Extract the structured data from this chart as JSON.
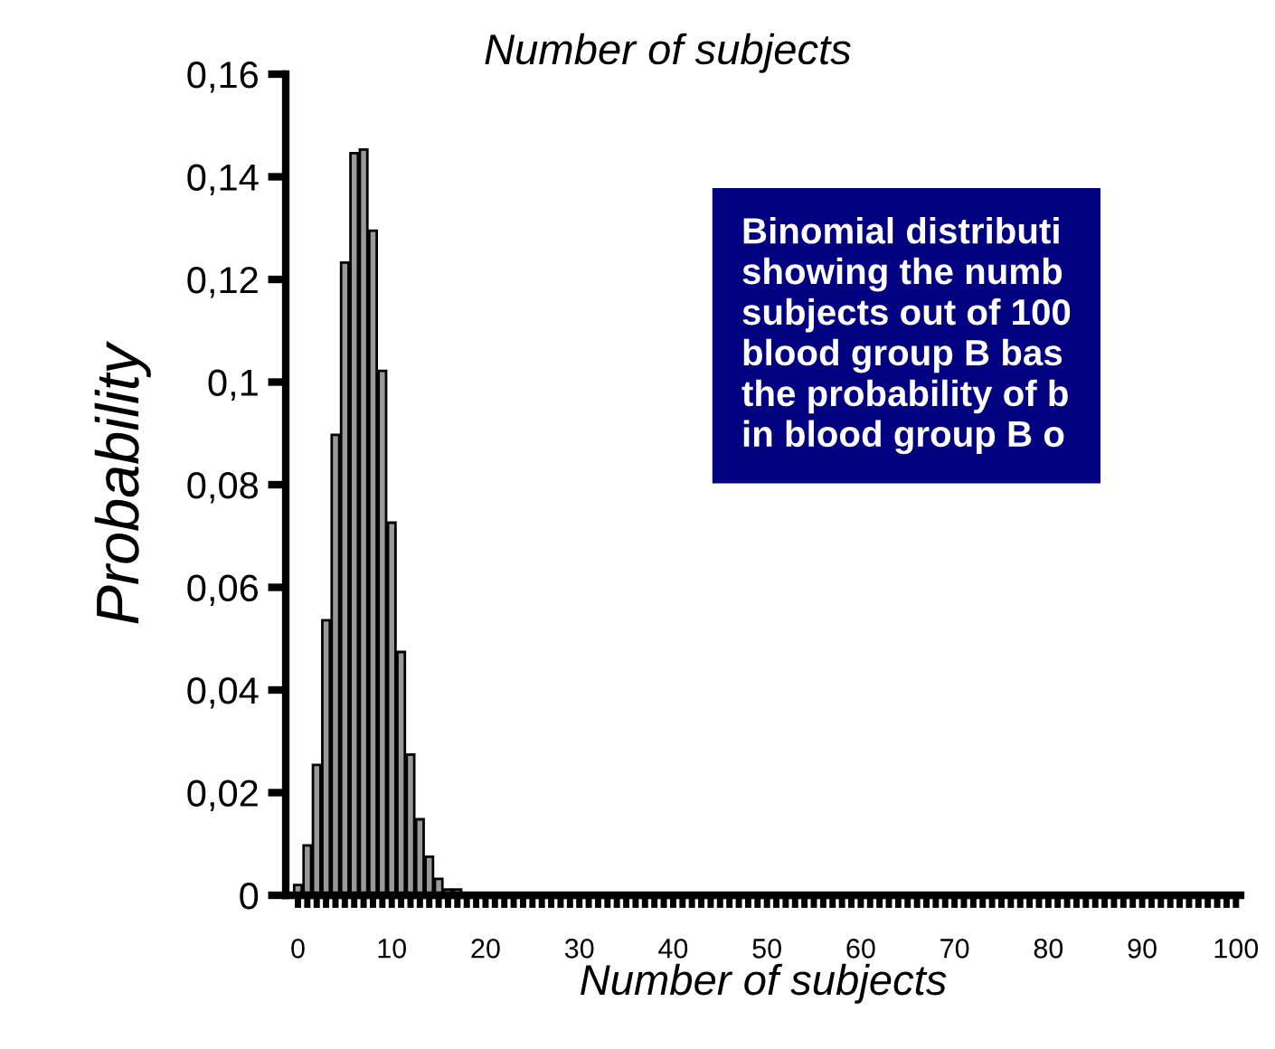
{
  "chart_data": {
    "type": "bar",
    "title": "Number of subjects",
    "xlabel": "Number of subjects",
    "ylabel": "Probability",
    "categories": [
      "0",
      null,
      null,
      null,
      null,
      null,
      null,
      null,
      null,
      null,
      "10",
      null,
      null,
      null,
      null,
      null,
      null,
      null,
      null,
      null,
      "20",
      null,
      null,
      null,
      null,
      null,
      null,
      null,
      null,
      null,
      "30",
      null,
      null,
      null,
      null,
      null,
      null,
      null,
      null,
      null,
      "40",
      null,
      null,
      null,
      null,
      null,
      null,
      null,
      null,
      null,
      "50",
      null,
      null,
      null,
      null,
      null,
      null,
      null,
      null,
      null,
      "60",
      null,
      null,
      null,
      null,
      null,
      null,
      null,
      null,
      null,
      "70",
      null,
      null,
      null,
      null,
      null,
      null,
      null,
      null,
      null,
      "80",
      null,
      null,
      null,
      null,
      null,
      null,
      null,
      null,
      null,
      "90",
      null,
      null,
      null,
      null,
      null,
      null,
      null,
      null,
      null,
      "100"
    ],
    "values": [
      0.002,
      0.0097,
      0.0254,
      0.0536,
      0.0897,
      0.1233,
      0.1446,
      0.1453,
      0.1295,
      0.1022,
      0.0726,
      0.0474,
      0.0274,
      0.0148,
      0.0075,
      0.0032,
      0.0011,
      0.0011,
      null,
      null,
      null,
      null,
      null,
      null,
      null,
      null,
      null,
      null,
      null,
      null,
      null,
      null,
      null,
      null,
      null,
      null,
      null,
      null,
      null,
      null,
      null,
      null,
      null,
      null,
      null,
      null,
      null,
      null,
      null,
      null,
      null,
      null,
      null,
      null,
      null,
      null,
      null,
      null,
      null,
      null,
      null,
      null,
      null,
      null,
      null,
      null,
      null,
      null,
      null,
      null,
      null,
      null,
      null,
      null,
      null,
      null,
      null,
      null,
      null,
      null,
      null,
      null,
      null,
      null,
      null,
      null,
      null,
      null,
      null,
      null,
      null,
      null,
      null,
      null,
      null,
      null,
      null,
      null,
      null,
      null,
      null
    ],
    "color": "#999999",
    "ylim": [
      0,
      0.16
    ],
    "yticks": [
      0,
      {
        "value": 0.02,
        "label": "0,02"
      },
      {
        "value": 0.04,
        "label": "0,04"
      },
      {
        "value": 0.06,
        "label": "0,06"
      },
      {
        "value": 0.08,
        "label": "0,08"
      },
      {
        "value": 0.1,
        "label": "0,1"
      },
      {
        "value": 0.12,
        "label": "0,12"
      },
      {
        "value": 0.14,
        "label": "0,14"
      },
      {
        "value": 0.16,
        "label": "0,16"
      }
    ],
    "annotations": [
      "Binomial distributi\nshowing the numb\nsubjects out of 100\nblood group B bas\nthe probability of b\nin blood group B o"
    ]
  }
}
